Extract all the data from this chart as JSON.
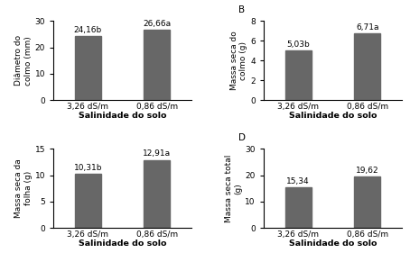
{
  "panels": [
    {
      "label": "",
      "ylabel": "Diâmetro do\ncolmo (mm)",
      "xlabel": "Salinidade do solo",
      "categories": [
        "3,26 dS/m",
        "0,86 dS/m"
      ],
      "values": [
        24.16,
        26.66
      ],
      "annotations": [
        "24,16b",
        "26,66a"
      ],
      "ylim": [
        0,
        30
      ],
      "yticks": [
        0,
        10,
        20,
        30
      ]
    },
    {
      "label": "B",
      "ylabel": "Massa seca do\ncolmo (g)",
      "xlabel": "Salinidade do solo",
      "categories": [
        "3,26 dS/m",
        "0,86 dS/m"
      ],
      "values": [
        5.03,
        6.71
      ],
      "annotations": [
        "5,03b",
        "6,71a"
      ],
      "ylim": [
        0,
        8
      ],
      "yticks": [
        0,
        2,
        4,
        6,
        8
      ]
    },
    {
      "label": "",
      "ylabel": "Massa seca da\nfolha (g)",
      "xlabel": "Salinidade do solo",
      "categories": [
        "3,26 dS/m",
        "0,86 dS/m"
      ],
      "values": [
        10.31,
        12.91
      ],
      "annotations": [
        "10,31b",
        "12,91a"
      ],
      "ylim": [
        0,
        15
      ],
      "yticks": [
        0,
        5,
        10,
        15
      ]
    },
    {
      "label": "D",
      "ylabel": "Massa seca total\n(g)",
      "xlabel": "Salinidade do solo",
      "categories": [
        "3,26 dS/m",
        "0,86 dS/m"
      ],
      "values": [
        15.34,
        19.62
      ],
      "annotations": [
        "15,34",
        "19,62"
      ],
      "ylim": [
        0,
        30
      ],
      "yticks": [
        0,
        10,
        20,
        30
      ]
    }
  ],
  "bar_color": "#676767",
  "bar_width": 0.38,
  "background_color": "#ffffff",
  "font_size": 6.5,
  "xlabel_fontsize": 6.8,
  "ylabel_fontsize": 6.5,
  "annotation_fontsize": 6.5,
  "label_fontsize": 7.5
}
